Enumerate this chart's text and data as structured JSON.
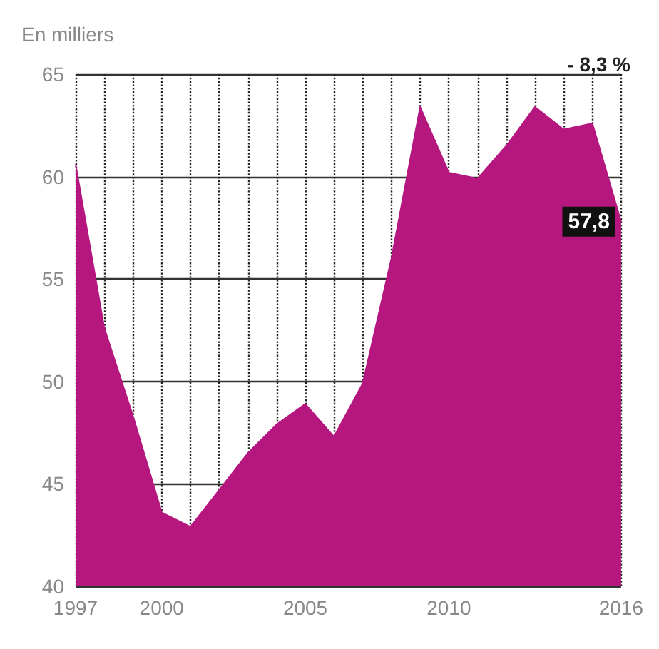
{
  "chart_data": {
    "type": "area",
    "ylabel": "En milliers",
    "x": [
      1997,
      1998,
      1999,
      2000,
      2001,
      2002,
      2003,
      2004,
      2005,
      2006,
      2007,
      2008,
      2009,
      2010,
      2011,
      2012,
      2013,
      2014,
      2015,
      2016
    ],
    "series": [
      {
        "color": "#b5177f",
        "values": [
          60.6,
          52.6,
          48.3,
          43.6,
          42.9,
          44.7,
          46.5,
          47.9,
          48.9,
          47.3,
          49.9,
          56,
          63.4,
          60.2,
          59.9,
          61.5,
          63.4,
          62.3,
          62.6,
          57.8
        ],
        "value_labels": [
          null,
          null,
          null,
          null,
          null,
          null,
          null,
          null,
          null,
          null,
          null,
          null,
          null,
          null,
          null,
          null,
          null,
          null,
          null,
          "57,8"
        ]
      }
    ],
    "annotations": [
      "- 8,3 %"
    ],
    "xlim": [
      1997,
      2016
    ],
    "xticks": [
      1997,
      {
        "value": 1998,
        "label": null
      },
      {
        "value": 1999,
        "label": null
      },
      2000,
      {
        "value": 2001,
        "label": null
      },
      {
        "value": 2002,
        "label": null
      },
      {
        "value": 2003,
        "label": null
      },
      {
        "value": 2004,
        "label": null
      },
      2005,
      {
        "value": 2006,
        "label": null
      },
      {
        "value": 2007,
        "label": null
      },
      {
        "value": 2008,
        "label": null
      },
      {
        "value": 2009,
        "label": null
      },
      2010,
      {
        "value": 2011,
        "label": null
      },
      {
        "value": 2012,
        "label": null
      },
      {
        "value": 2013,
        "label": null
      },
      {
        "value": 2014,
        "label": null
      },
      {
        "value": 2015,
        "label": null
      },
      2016
    ],
    "ylim": [
      40,
      65
    ],
    "yticks": [
      40,
      45,
      50,
      55,
      60,
      65
    ],
    "grid": true
  }
}
